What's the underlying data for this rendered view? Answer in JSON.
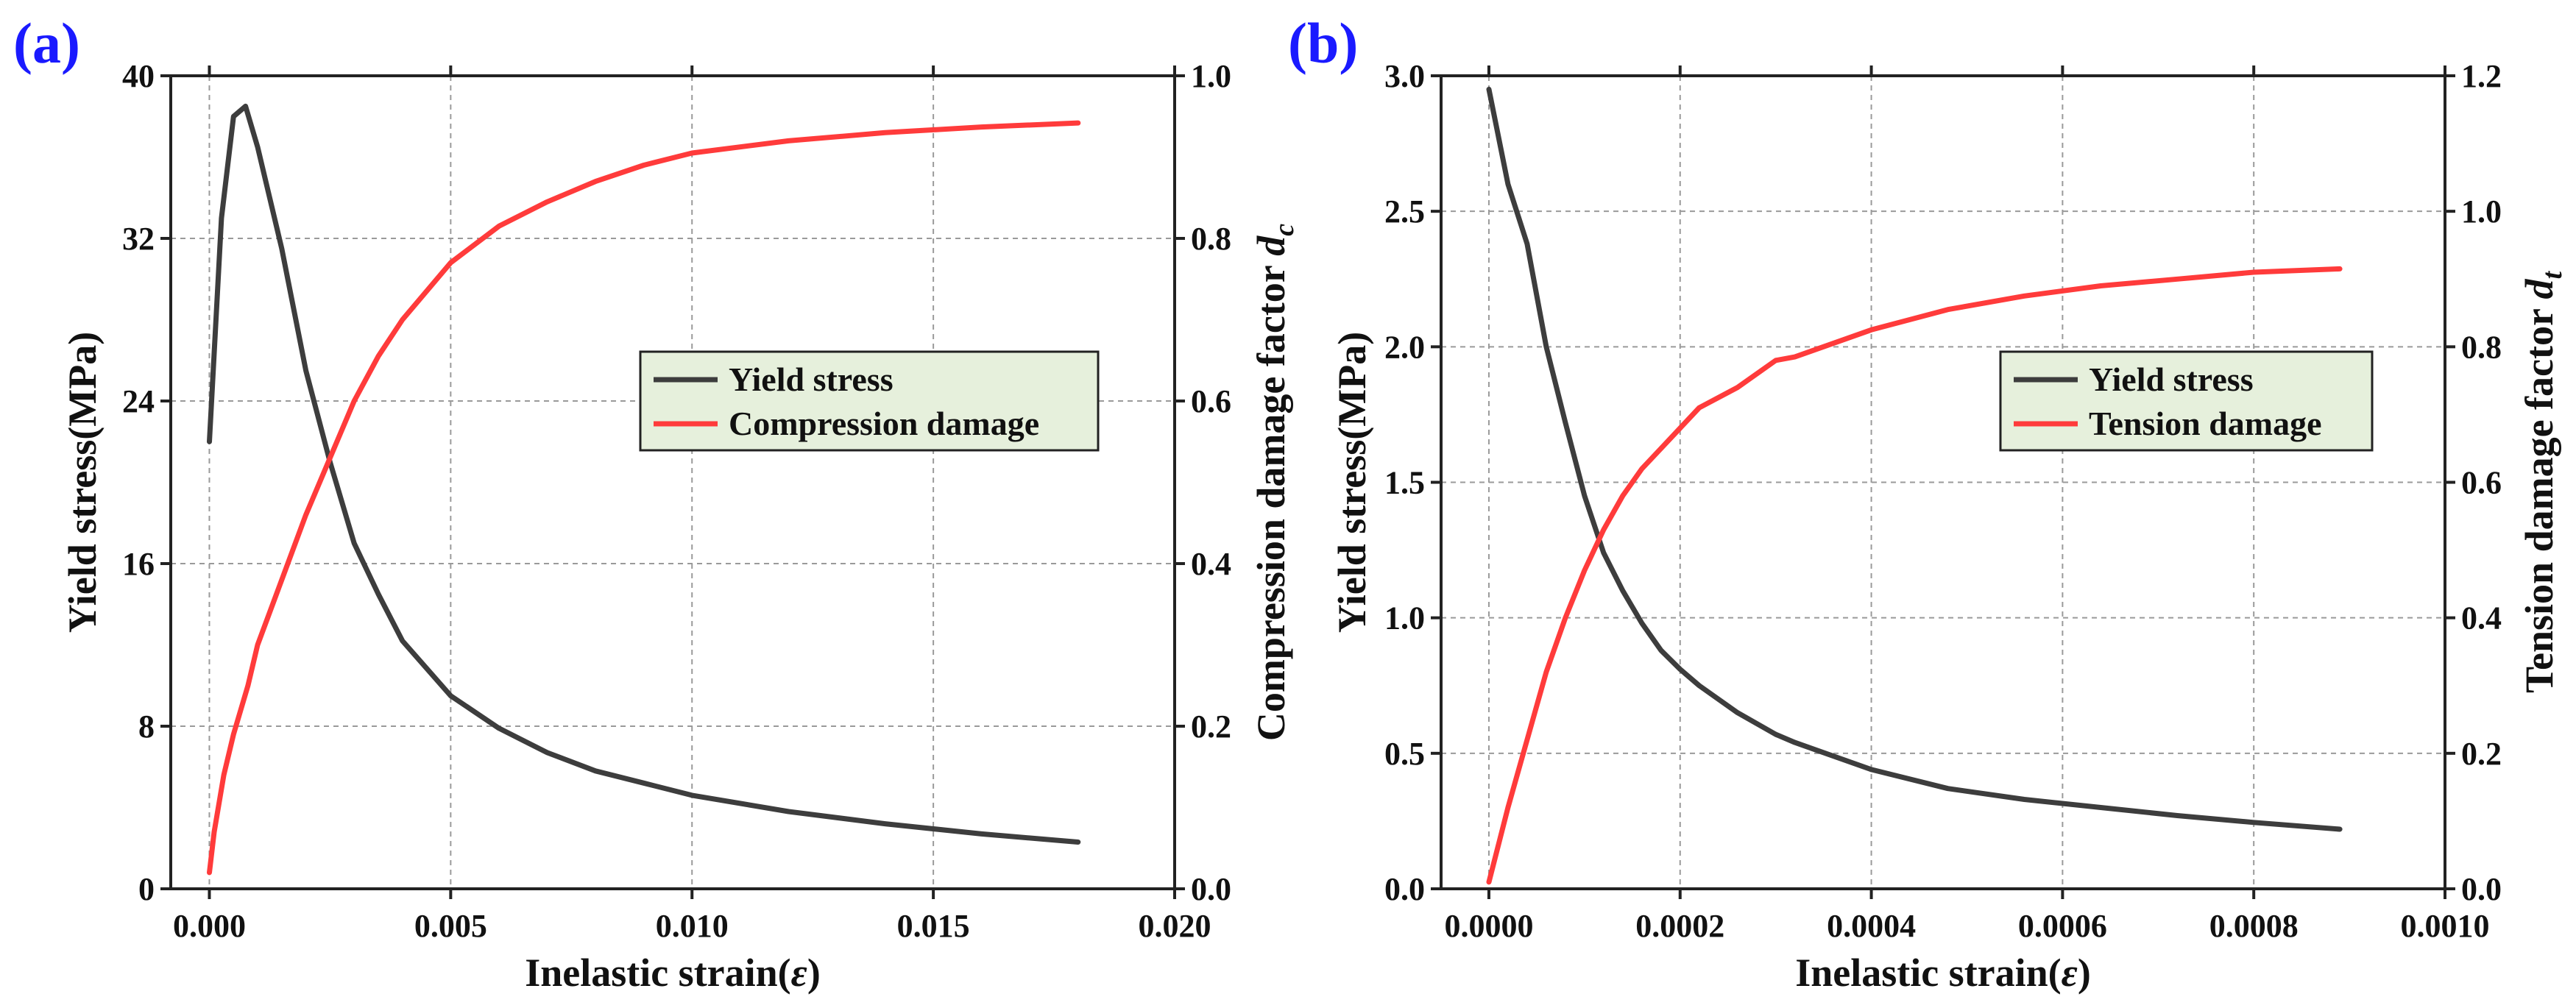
{
  "chart_data": [
    {
      "panel": "(a)",
      "type": "line",
      "xlabel": "Inelastic strain(ε)",
      "xlabel_base": "Inelastic strain(",
      "xlabel_symbol": "ε",
      "xlabel_close": ")",
      "ylabel_left": "Yield stress(MPa)",
      "ylabel_right": "Compression damage factor d_c",
      "ylabel_right_base": "Compression damage factor ",
      "ylabel_right_var": "d",
      "ylabel_right_sub": "c",
      "xlim": [
        -0.0008,
        0.02
      ],
      "ylim_left": [
        0,
        40
      ],
      "ylim_right": [
        0,
        1.0
      ],
      "xticks": [
        0.0,
        0.005,
        0.01,
        0.015,
        0.02
      ],
      "xtick_labels": [
        "0.000",
        "0.005",
        "0.010",
        "0.015",
        "0.020"
      ],
      "yticks_left": [
        0,
        8,
        16,
        24,
        32,
        40
      ],
      "ytick_labels_left": [
        "0",
        "8",
        "16",
        "24",
        "32",
        "40"
      ],
      "yticks_right": [
        0.0,
        0.2,
        0.4,
        0.6,
        0.8,
        1.0
      ],
      "ytick_labels_right": [
        "0.0",
        "0.2",
        "0.4",
        "0.6",
        "0.8",
        "1.0"
      ],
      "grid": true,
      "legend_position": "center-right",
      "series": [
        {
          "name": "Yield stress",
          "axis": "left",
          "color": "#3d3d3d",
          "x": [
            0.0,
            0.00025,
            0.0005,
            0.00075,
            0.001,
            0.0015,
            0.002,
            0.0025,
            0.003,
            0.0035,
            0.004,
            0.005,
            0.006,
            0.007,
            0.008,
            0.009,
            0.01,
            0.012,
            0.014,
            0.016,
            0.018
          ],
          "y": [
            22,
            33,
            38,
            38.5,
            36.5,
            31.5,
            25.5,
            21,
            17,
            14.5,
            12.2,
            9.5,
            7.9,
            6.7,
            5.8,
            5.2,
            4.6,
            3.8,
            3.2,
            2.7,
            2.3
          ]
        },
        {
          "name": "Compression damage",
          "axis": "right",
          "color": "#ff3b3b",
          "x": [
            0.0,
            0.0001,
            0.0003,
            0.0005,
            0.0008,
            0.001,
            0.0015,
            0.002,
            0.0025,
            0.003,
            0.0035,
            0.004,
            0.005,
            0.006,
            0.007,
            0.008,
            0.009,
            0.01,
            0.012,
            0.014,
            0.016,
            0.018
          ],
          "y": [
            0.02,
            0.07,
            0.14,
            0.19,
            0.25,
            0.3,
            0.38,
            0.46,
            0.53,
            0.6,
            0.655,
            0.7,
            0.77,
            0.815,
            0.845,
            0.87,
            0.89,
            0.905,
            0.92,
            0.93,
            0.937,
            0.942
          ]
        }
      ]
    },
    {
      "panel": "(b)",
      "type": "line",
      "xlabel": "Inelastic strain(ε)",
      "xlabel_base": "Inelastic strain(",
      "xlabel_symbol": "ε",
      "xlabel_close": ")",
      "ylabel_left": "Yield stress(MPa)",
      "ylabel_right": "Tension damage factor d_t",
      "ylabel_right_base": "Tension damage factor ",
      "ylabel_right_var": "d",
      "ylabel_right_sub": "t",
      "xlim": [
        -5e-05,
        0.001
      ],
      "ylim_left": [
        0,
        3.0
      ],
      "ylim_right": [
        0,
        1.2
      ],
      "xticks": [
        0.0,
        0.0002,
        0.0004,
        0.0006,
        0.0008,
        0.001
      ],
      "xtick_labels": [
        "0.0000",
        "0.0002",
        "0.0004",
        "0.0006",
        "0.0008",
        "0.0010"
      ],
      "yticks_left": [
        0.0,
        0.5,
        1.0,
        1.5,
        2.0,
        2.5,
        3.0
      ],
      "ytick_labels_left": [
        "0.0",
        "0.5",
        "1.0",
        "1.5",
        "2.0",
        "2.5",
        "3.0"
      ],
      "yticks_right": [
        0.0,
        0.2,
        0.4,
        0.6,
        0.8,
        1.0,
        1.2
      ],
      "ytick_labels_right": [
        "0.0",
        "0.2",
        "0.4",
        "0.6",
        "0.8",
        "1.0",
        "1.2"
      ],
      "grid": true,
      "legend_position": "center-right",
      "series": [
        {
          "name": "Yield stress",
          "axis": "left",
          "color": "#3d3d3d",
          "x": [
            0.0,
            2e-05,
            4e-05,
            6e-05,
            8e-05,
            0.0001,
            0.00012,
            0.00014,
            0.00016,
            0.00018,
            0.0002,
            0.00022,
            0.00026,
            0.0003,
            0.00032,
            0.0004,
            0.00048,
            0.00056,
            0.00064,
            0.00072,
            0.0008,
            0.00089
          ],
          "y": [
            2.95,
            2.6,
            2.38,
            2.0,
            1.72,
            1.45,
            1.24,
            1.1,
            0.98,
            0.88,
            0.81,
            0.75,
            0.65,
            0.57,
            0.54,
            0.44,
            0.37,
            0.33,
            0.3,
            0.27,
            0.245,
            0.22
          ]
        },
        {
          "name": "Tension damage",
          "axis": "right",
          "color": "#ff3b3b",
          "x": [
            0.0,
            2e-05,
            4e-05,
            6e-05,
            8e-05,
            0.0001,
            0.00012,
            0.00014,
            0.00016,
            0.00018,
            0.0002,
            0.00022,
            0.00026,
            0.0003,
            0.00032,
            0.0004,
            0.00048,
            0.00056,
            0.00064,
            0.00072,
            0.0008,
            0.00089
          ],
          "y": [
            0.01,
            0.12,
            0.22,
            0.32,
            0.4,
            0.47,
            0.53,
            0.58,
            0.62,
            0.65,
            0.68,
            0.71,
            0.74,
            0.78,
            0.785,
            0.825,
            0.855,
            0.875,
            0.89,
            0.9,
            0.91,
            0.915
          ]
        }
      ]
    }
  ]
}
